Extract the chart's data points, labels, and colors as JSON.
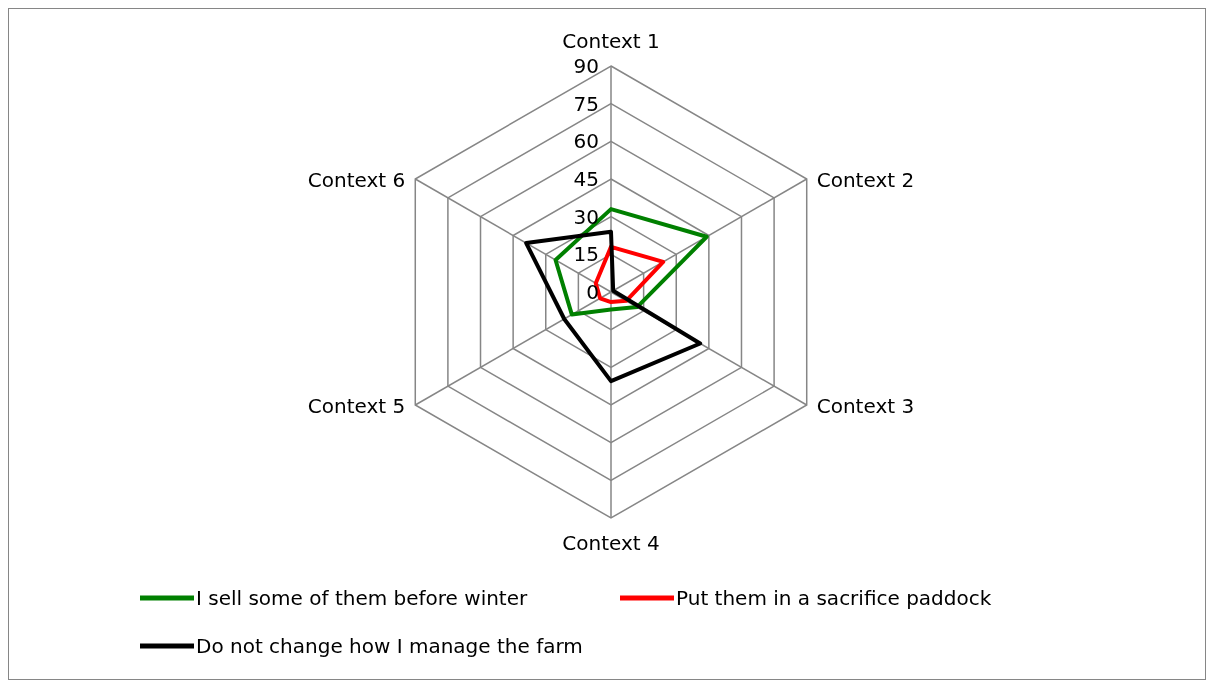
{
  "chart_data": {
    "type": "radar",
    "categories": [
      "Context 1",
      "Context 2",
      "Context 3",
      "Context 4",
      "Context 5",
      "Context 6"
    ],
    "ylim": [
      0,
      90
    ],
    "yticks": [
      0,
      15,
      30,
      45,
      60,
      75,
      90
    ],
    "legend": "bottom",
    "series": [
      {
        "name": "I sell some of them before winter",
        "color": "#008000",
        "values": [
          33,
          44,
          12,
          7,
          18,
          25.5
        ]
      },
      {
        "name": "Put them in a sacrifice paddock",
        "color": "#ff0000",
        "values": [
          18,
          24,
          7,
          4,
          5,
          7
        ]
      },
      {
        "name": "Do not change how I manage the farm",
        "color": "#000000",
        "values": [
          24,
          1,
          41,
          35.5,
          21.5,
          39
        ]
      }
    ]
  }
}
